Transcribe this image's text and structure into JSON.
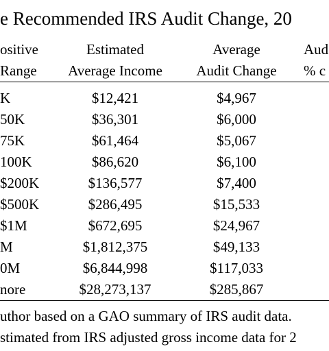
{
  "title": "e Recommended IRS Audit Change, 20",
  "table": {
    "header": [
      [
        "ositive",
        "Estimated",
        "Average",
        "Aud"
      ],
      [
        "Range",
        "Average Income",
        "Audit Change",
        "% c"
      ]
    ],
    "rows": [
      [
        "K",
        "$12,421",
        "$4,967"
      ],
      [
        "50K",
        "$36,301",
        "$6,000"
      ],
      [
        "75K",
        "$61,464",
        "$5,067"
      ],
      [
        "100K",
        "$86,620",
        "$6,100"
      ],
      [
        "$200K",
        "$136,577",
        "$7,400"
      ],
      [
        "$500K",
        "$286,495",
        "$15,533"
      ],
      [
        "$1M",
        "$672,695",
        "$24,967"
      ],
      [
        "M",
        "$1,812,375",
        "$49,133"
      ],
      [
        "0M",
        "$6,844,998",
        "$117,033"
      ],
      [
        "nore",
        "$28,273,137",
        "$285,867"
      ]
    ]
  },
  "notes": [
    "uthor based on a GAO summary of IRS audit data.",
    "stimated from IRS adjusted gross income data for 2"
  ]
}
